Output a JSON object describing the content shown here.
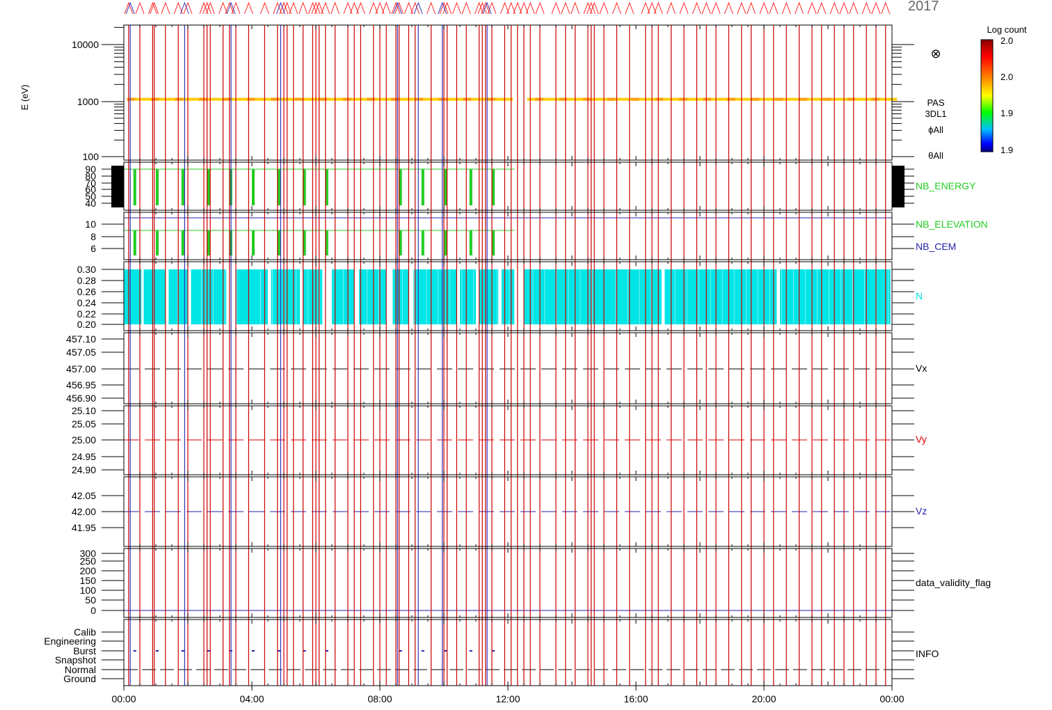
{
  "header": {
    "year_label": "2017"
  },
  "spectrogram": {
    "ylabel": "E (eV)",
    "yticks": [
      "10000",
      "1000",
      "100"
    ],
    "side_labels": [
      "PAS",
      "3DL1",
      "ϕAll",
      "θAll"
    ],
    "flux_symbol": "⊗",
    "band_energy": 1100
  },
  "colorbar": {
    "title": "Log count",
    "ticks": [
      "2.0",
      "2.0",
      "1.9",
      "1.9"
    ],
    "colors": [
      "#8b0000",
      "#ff0000",
      "#ff8c00",
      "#ffff00",
      "#00ff00",
      "#00bfff",
      "#0000ff",
      "#000080"
    ]
  },
  "panels": [
    {
      "id": "nb-energy",
      "label": "NB_ENERGY",
      "label_color": "#22cc22",
      "yticks": [
        "90",
        "80",
        "70",
        "60",
        "50",
        "40"
      ]
    },
    {
      "id": "nb-elevation",
      "label": "NB_ELEVATION",
      "label_color": "#22cc22",
      "label2": "NB_CEM",
      "label2_color": "#2222aa",
      "yticks": [
        "10",
        "8",
        "6"
      ]
    },
    {
      "id": "n",
      "label": "N",
      "label_color": "#00e5e5",
      "yticks": [
        "0.30",
        "0.28",
        "0.26",
        "0.24",
        "0.22",
        "0.20"
      ]
    },
    {
      "id": "vx",
      "label": "Vx",
      "label_color": "#000000",
      "yticks": [
        "457.10",
        "457.05",
        "457.00",
        "456.95",
        "456.90"
      ]
    },
    {
      "id": "vy",
      "label": "Vy",
      "label_color": "#dd0000",
      "yticks": [
        "25.10",
        "25.05",
        "25.00",
        "24.95",
        "24.90"
      ]
    },
    {
      "id": "vz",
      "label": "Vz",
      "label_color": "#2222aa",
      "yticks": [
        "42.05",
        "42.00",
        "41.95"
      ]
    },
    {
      "id": "validity",
      "label": "data_validity_flag",
      "label_color": "#000000",
      "yticks": [
        "300",
        "250",
        "200",
        "150",
        "100",
        "50",
        "0"
      ]
    },
    {
      "id": "info",
      "label": "INFO",
      "label_color": "#000000",
      "yticks": [
        "Calib",
        "Engineering",
        "Burst",
        "Snapshot",
        "Normal",
        "Ground"
      ]
    }
  ],
  "chart_data": {
    "type": "line",
    "xlabel": "",
    "x_tick_labels": [
      "00:00",
      "04:00",
      "08:00",
      "12:00",
      "16:00",
      "20:00",
      "00:00"
    ],
    "x_range_hours": [
      0,
      24
    ],
    "N_value_range": [
      0.2,
      0.3
    ],
    "Vx_value": 457.0,
    "Vy_value": 25.0,
    "Vz_value": 42.0,
    "nb_energy_pulse_hours": [
      0.3,
      1.0,
      1.8,
      2.6,
      3.3,
      4.0,
      4.8,
      5.6,
      6.3,
      8.6,
      9.3,
      10.0,
      10.8,
      11.5
    ],
    "marker_red_hours": [
      0.15,
      0.5,
      0.9,
      0.95,
      1.3,
      1.7,
      2.0,
      2.5,
      2.6,
      2.7,
      3.1,
      3.3,
      3.5,
      3.9,
      4.4,
      4.8,
      5.0,
      5.1,
      5.3,
      5.6,
      5.9,
      6.0,
      6.1,
      6.3,
      6.6,
      7.0,
      7.2,
      7.4,
      7.8,
      8.0,
      8.2,
      8.5,
      8.6,
      8.9,
      9.1,
      9.6,
      10.0,
      10.1,
      10.4,
      10.7,
      11.1,
      11.2,
      11.3,
      11.5,
      11.9,
      12.1,
      12.3,
      12.5,
      12.7,
      13.0,
      13.5,
      13.8,
      14.1,
      14.5,
      14.6,
      14.7,
      15.0,
      15.4,
      15.8,
      16.3,
      16.5,
      16.7,
      17.1,
      17.5,
      17.9,
      18.2,
      18.5,
      18.9,
      19.3,
      19.6,
      20.0,
      20.3,
      20.7,
      21.1,
      21.5,
      21.8,
      22.2,
      22.5,
      22.8,
      23.2,
      23.5,
      23.8
    ],
    "marker_blue_hours": [
      0.2,
      1.9,
      3.35,
      4.9,
      8.55,
      9.2,
      9.95,
      11.35
    ]
  }
}
